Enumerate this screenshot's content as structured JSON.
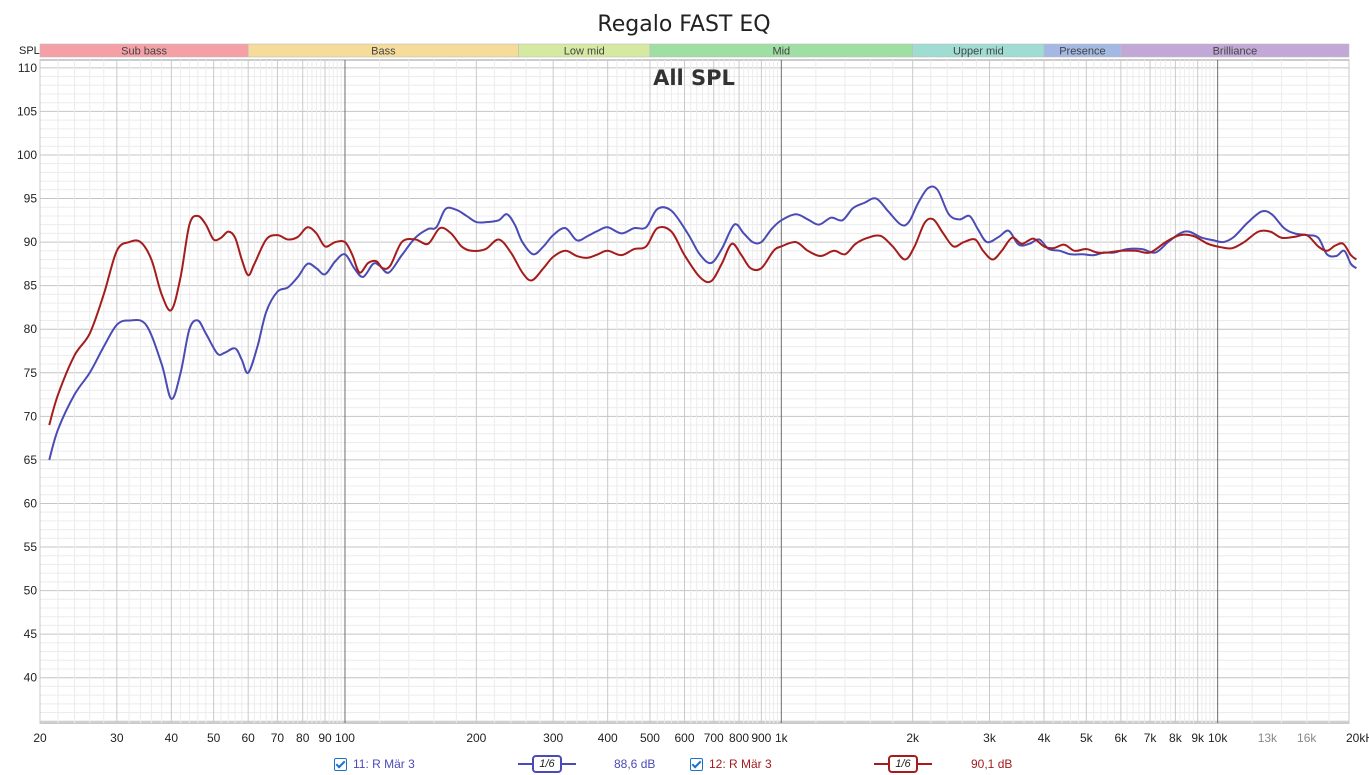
{
  "title": "Regalo FAST EQ",
  "panel_label": "All SPL",
  "axis": {
    "y_unit": "SPL",
    "x_unit": "kHz",
    "y_ticks": [
      110,
      105,
      100,
      95,
      90,
      85,
      80,
      75,
      70,
      65,
      60,
      55,
      50,
      45,
      40
    ],
    "x_ticks": [
      {
        "f": 20,
        "label": "20"
      },
      {
        "f": 30,
        "label": "30"
      },
      {
        "f": 40,
        "label": "40"
      },
      {
        "f": 50,
        "label": "50"
      },
      {
        "f": 60,
        "label": "60"
      },
      {
        "f": 70,
        "label": "70"
      },
      {
        "f": 80,
        "label": "80"
      },
      {
        "f": 90,
        "label": "90"
      },
      {
        "f": 100,
        "label": "100"
      },
      {
        "f": 200,
        "label": "200"
      },
      {
        "f": 300,
        "label": "300"
      },
      {
        "f": 400,
        "label": "400"
      },
      {
        "f": 500,
        "label": "500"
      },
      {
        "f": 600,
        "label": "600"
      },
      {
        "f": 700,
        "label": "700"
      },
      {
        "f": 800,
        "label": "800"
      },
      {
        "f": 900,
        "label": "900"
      },
      {
        "f": 1000,
        "label": "1k"
      },
      {
        "f": 2000,
        "label": "2k"
      },
      {
        "f": 3000,
        "label": "3k"
      },
      {
        "f": 4000,
        "label": "4k"
      },
      {
        "f": 5000,
        "label": "5k"
      },
      {
        "f": 6000,
        "label": "6k"
      },
      {
        "f": 7000,
        "label": "7k"
      },
      {
        "f": 8000,
        "label": "8k"
      },
      {
        "f": 9000,
        "label": "9k"
      },
      {
        "f": 10000,
        "label": "10k"
      },
      {
        "f": 13000,
        "label": "13k"
      },
      {
        "f": 16000,
        "label": "16k"
      },
      {
        "f": 20000,
        "label": "20kHz"
      }
    ]
  },
  "bands": [
    {
      "name": "Sub bass",
      "from": 20,
      "to": 60,
      "color": "#f4a0a6"
    },
    {
      "name": "Bass",
      "from": 60,
      "to": 250,
      "color": "#f6dc9a"
    },
    {
      "name": "Low mid",
      "from": 250,
      "to": 500,
      "color": "#d5eaa0"
    },
    {
      "name": "Mid",
      "from": 500,
      "to": 2000,
      "color": "#9fdfa3"
    },
    {
      "name": "Upper mid",
      "from": 2000,
      "to": 4000,
      "color": "#9fdcd2"
    },
    {
      "name": "Presence",
      "from": 4000,
      "to": 6000,
      "color": "#a3b8e2"
    },
    {
      "name": "Brilliance",
      "from": 6000,
      "to": 20000,
      "color": "#c2a8d6"
    }
  ],
  "chart_data": {
    "type": "line",
    "title": "Regalo FAST EQ",
    "subtitle": "All SPL",
    "xlabel": "",
    "ylabel": "SPL",
    "x_scale": "log",
    "xlim": [
      20,
      20000
    ],
    "ylim": [
      35,
      111
    ],
    "grid": true,
    "series": [
      {
        "name": "11: R Mär 3",
        "color": "#4b4bb5",
        "points": [
          [
            21,
            65
          ],
          [
            22,
            68.5
          ],
          [
            24,
            72.5
          ],
          [
            26,
            75
          ],
          [
            28,
            78
          ],
          [
            30,
            80.5
          ],
          [
            32,
            81
          ],
          [
            35,
            80.5
          ],
          [
            38,
            76
          ],
          [
            40,
            72
          ],
          [
            42,
            75
          ],
          [
            44,
            80
          ],
          [
            46,
            81
          ],
          [
            48,
            79.5
          ],
          [
            51,
            77.2
          ],
          [
            53,
            77.3
          ],
          [
            56,
            77.8
          ],
          [
            58,
            76.5
          ],
          [
            60,
            75
          ],
          [
            63,
            78
          ],
          [
            66,
            82
          ],
          [
            70,
            84.3
          ],
          [
            74,
            84.8
          ],
          [
            78,
            86
          ],
          [
            82,
            87.5
          ],
          [
            86,
            87
          ],
          [
            90,
            86.3
          ],
          [
            95,
            87.8
          ],
          [
            100,
            88.6
          ],
          [
            105,
            87
          ],
          [
            110,
            86
          ],
          [
            116,
            87.5
          ],
          [
            120,
            87.3
          ],
          [
            126,
            86.5
          ],
          [
            135,
            88.5
          ],
          [
            145,
            90.5
          ],
          [
            155,
            91.5
          ],
          [
            162,
            91.7
          ],
          [
            170,
            93.8
          ],
          [
            180,
            93.7
          ],
          [
            190,
            93
          ],
          [
            200,
            92.3
          ],
          [
            212,
            92.3
          ],
          [
            225,
            92.5
          ],
          [
            235,
            93.2
          ],
          [
            245,
            92
          ],
          [
            255,
            90
          ],
          [
            270,
            88.6
          ],
          [
            285,
            89.5
          ],
          [
            300,
            90.8
          ],
          [
            320,
            91.6
          ],
          [
            340,
            90.2
          ],
          [
            360,
            90.7
          ],
          [
            380,
            91.3
          ],
          [
            400,
            91.7
          ],
          [
            430,
            91
          ],
          [
            460,
            91.6
          ],
          [
            490,
            91.7
          ],
          [
            520,
            93.8
          ],
          [
            560,
            93.6
          ],
          [
            610,
            91
          ],
          [
            650,
            88.6
          ],
          [
            690,
            87.6
          ],
          [
            730,
            89.2
          ],
          [
            780,
            92
          ],
          [
            820,
            91
          ],
          [
            860,
            90
          ],
          [
            900,
            90
          ],
          [
            950,
            91.5
          ],
          [
            1000,
            92.5
          ],
          [
            1080,
            93.2
          ],
          [
            1150,
            92.6
          ],
          [
            1220,
            92
          ],
          [
            1300,
            92.8
          ],
          [
            1380,
            92.5
          ],
          [
            1460,
            93.9
          ],
          [
            1550,
            94.5
          ],
          [
            1650,
            95
          ],
          [
            1760,
            93.5
          ],
          [
            1880,
            92
          ],
          [
            1960,
            92.3
          ],
          [
            2060,
            94.5
          ],
          [
            2170,
            96.2
          ],
          [
            2280,
            96
          ],
          [
            2420,
            93.2
          ],
          [
            2560,
            92.6
          ],
          [
            2700,
            93
          ],
          [
            2820,
            91.5
          ],
          [
            2960,
            90
          ],
          [
            3150,
            90.6
          ],
          [
            3320,
            91.3
          ],
          [
            3500,
            89.7
          ],
          [
            3700,
            89.8
          ],
          [
            3900,
            90.3
          ],
          [
            4100,
            89.2
          ],
          [
            4350,
            89
          ],
          [
            4600,
            88.6
          ],
          [
            4900,
            88.6
          ],
          [
            5200,
            88.5
          ],
          [
            5500,
            88.8
          ],
          [
            5800,
            88.8
          ],
          [
            6200,
            89.2
          ],
          [
            6700,
            89.2
          ],
          [
            7200,
            88.8
          ],
          [
            7700,
            90
          ],
          [
            8200,
            91
          ],
          [
            8600,
            91.2
          ],
          [
            9200,
            90.5
          ],
          [
            9800,
            90.2
          ],
          [
            10300,
            90
          ],
          [
            10900,
            90.6
          ],
          [
            11700,
            92.2
          ],
          [
            12600,
            93.5
          ],
          [
            13300,
            93.2
          ],
          [
            14200,
            91.6
          ],
          [
            15000,
            91
          ],
          [
            16000,
            90.8
          ],
          [
            17000,
            90.5
          ],
          [
            17800,
            88.6
          ],
          [
            18700,
            88.4
          ],
          [
            19500,
            89
          ],
          [
            20200,
            87.5
          ],
          [
            20800,
            87
          ]
        ]
      },
      {
        "name": "12: R Mär 3",
        "color": "#a41c1c",
        "points": [
          [
            21,
            69
          ],
          [
            22,
            72.5
          ],
          [
            24,
            77
          ],
          [
            26,
            79.5
          ],
          [
            28,
            84
          ],
          [
            30,
            89
          ],
          [
            32,
            90
          ],
          [
            34,
            90
          ],
          [
            36,
            88
          ],
          [
            38,
            84
          ],
          [
            40,
            82.2
          ],
          [
            42,
            86
          ],
          [
            44,
            92
          ],
          [
            46,
            93
          ],
          [
            48,
            92
          ],
          [
            50,
            90.3
          ],
          [
            52,
            90.5
          ],
          [
            54,
            91.2
          ],
          [
            56,
            90.5
          ],
          [
            58,
            88
          ],
          [
            60,
            86.2
          ],
          [
            62,
            87.5
          ],
          [
            66,
            90.3
          ],
          [
            70,
            90.8
          ],
          [
            74,
            90.3
          ],
          [
            78,
            90.6
          ],
          [
            82,
            91.7
          ],
          [
            86,
            91
          ],
          [
            90,
            89.5
          ],
          [
            95,
            90
          ],
          [
            100,
            90
          ],
          [
            104,
            88.5
          ],
          [
            108,
            86.5
          ],
          [
            113,
            87.6
          ],
          [
            118,
            87.8
          ],
          [
            122,
            87
          ],
          [
            127,
            87.3
          ],
          [
            135,
            90
          ],
          [
            145,
            90.3
          ],
          [
            155,
            89.8
          ],
          [
            165,
            91.6
          ],
          [
            175,
            91
          ],
          [
            185,
            89.5
          ],
          [
            195,
            89
          ],
          [
            210,
            89.2
          ],
          [
            225,
            90.3
          ],
          [
            240,
            88.8
          ],
          [
            255,
            86.5
          ],
          [
            268,
            85.6
          ],
          [
            285,
            87
          ],
          [
            300,
            88.3
          ],
          [
            320,
            89
          ],
          [
            340,
            88.4
          ],
          [
            360,
            88.2
          ],
          [
            380,
            88.6
          ],
          [
            400,
            89
          ],
          [
            430,
            88.5
          ],
          [
            460,
            89.2
          ],
          [
            490,
            89.5
          ],
          [
            520,
            91.6
          ],
          [
            560,
            91.2
          ],
          [
            600,
            88.5
          ],
          [
            650,
            86
          ],
          [
            690,
            85.5
          ],
          [
            730,
            87.5
          ],
          [
            770,
            89.8
          ],
          [
            810,
            88.5
          ],
          [
            850,
            87
          ],
          [
            900,
            87
          ],
          [
            960,
            89
          ],
          [
            1000,
            89.5
          ],
          [
            1080,
            90
          ],
          [
            1150,
            89
          ],
          [
            1230,
            88.4
          ],
          [
            1320,
            89
          ],
          [
            1400,
            88.6
          ],
          [
            1480,
            89.8
          ],
          [
            1580,
            90.5
          ],
          [
            1690,
            90.7
          ],
          [
            1800,
            89.5
          ],
          [
            1920,
            88
          ],
          [
            2020,
            89.5
          ],
          [
            2130,
            92.2
          ],
          [
            2230,
            92.6
          ],
          [
            2350,
            91
          ],
          [
            2480,
            89.5
          ],
          [
            2620,
            90
          ],
          [
            2780,
            90.3
          ],
          [
            2900,
            89
          ],
          [
            3050,
            88
          ],
          [
            3200,
            89
          ],
          [
            3380,
            90.5
          ],
          [
            3560,
            89.8
          ],
          [
            3780,
            90.4
          ],
          [
            4000,
            89.5
          ],
          [
            4200,
            89.3
          ],
          [
            4450,
            89.7
          ],
          [
            4700,
            89
          ],
          [
            5000,
            89.2
          ],
          [
            5300,
            88.8
          ],
          [
            5600,
            88.8
          ],
          [
            6000,
            89
          ],
          [
            6500,
            89
          ],
          [
            7000,
            88.8
          ],
          [
            7600,
            90
          ],
          [
            8200,
            90.8
          ],
          [
            8800,
            90.7
          ],
          [
            9500,
            89.8
          ],
          [
            10200,
            89.4
          ],
          [
            10800,
            89.3
          ],
          [
            11500,
            90
          ],
          [
            12400,
            91.2
          ],
          [
            13200,
            91.2
          ],
          [
            14000,
            90.5
          ],
          [
            15000,
            90.6
          ],
          [
            16000,
            90.8
          ],
          [
            17000,
            89.5
          ],
          [
            17800,
            89
          ],
          [
            18600,
            89.6
          ],
          [
            19400,
            89.8
          ],
          [
            20200,
            88.5
          ],
          [
            20800,
            88
          ]
        ]
      }
    ]
  },
  "legend": [
    {
      "checked": true,
      "label": "11: R Mär 3",
      "smoothing": "1/6",
      "value": "88,6 dB",
      "color": "#4b4bb5"
    },
    {
      "checked": true,
      "label": "12: R Mär 3",
      "smoothing": "1/6",
      "value": "90,1 dB",
      "color": "#a41c1c"
    }
  ]
}
